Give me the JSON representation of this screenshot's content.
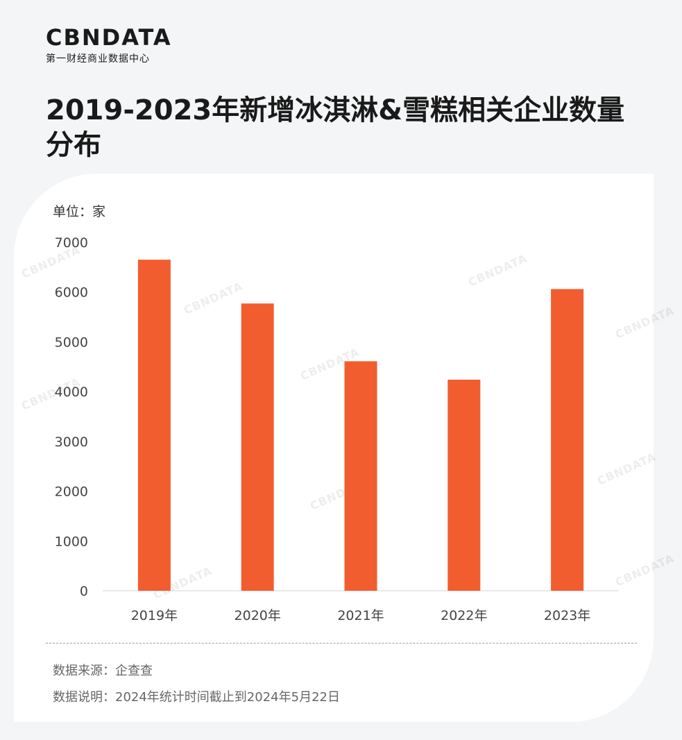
{
  "logo": {
    "text": "CBNDATA",
    "subtitle": "第一财经商业数据中心"
  },
  "title": "2019-2023年新增冰淇淋&雪糕相关企业数量分布",
  "unit_label": "单位：家",
  "source_note": "数据来源：企查查",
  "description_note": "数据说明：2024年统计时间截止到2024年5月22日",
  "colors": {
    "bar": "#f25d2f",
    "background": "#f3f5f6",
    "card": "#ffffff"
  },
  "chart_data": {
    "type": "bar",
    "categories": [
      "2019年",
      "2020年",
      "2021年",
      "2022年",
      "2023年"
    ],
    "values": [
      6650,
      5770,
      4610,
      4240,
      6060
    ],
    "y_ticks": [
      "0",
      "1000",
      "2000",
      "3000",
      "4000",
      "5000",
      "6000",
      "7000"
    ],
    "ylim": [
      0,
      7000
    ],
    "grid": false,
    "legend": "none"
  }
}
